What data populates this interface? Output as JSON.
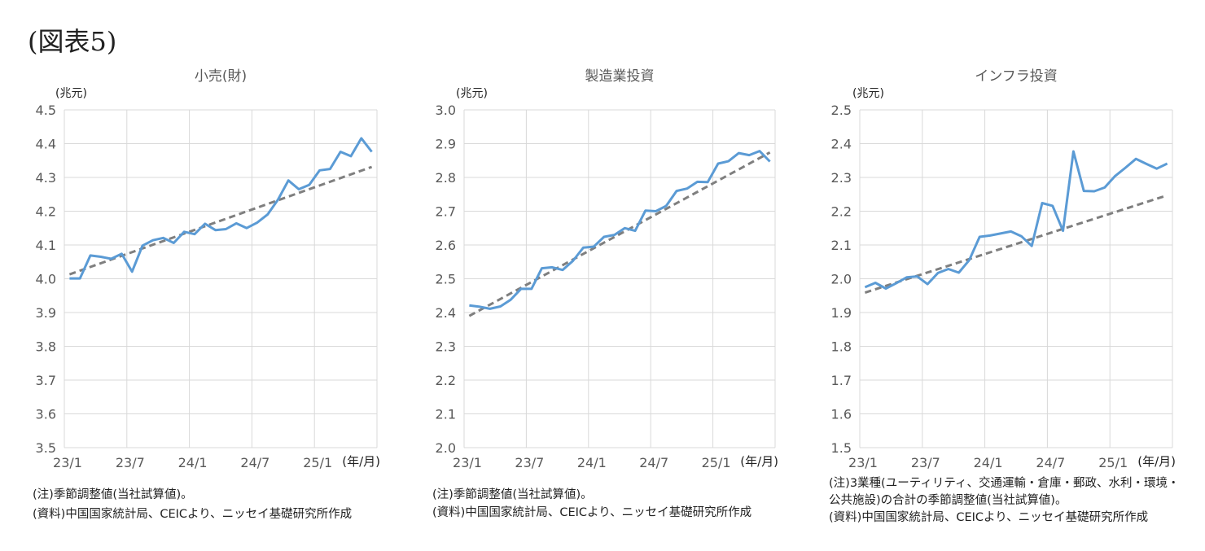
{
  "figure_title": "(図表5)",
  "chart_data": [
    {
      "type": "line",
      "title": "小売(財)",
      "ylabel": "(兆元)",
      "xlabel": "(年/月)",
      "ylim": [
        3.5,
        4.5
      ],
      "yticks": [
        "3.5",
        "3.6",
        "3.7",
        "3.8",
        "3.9",
        "4.0",
        "4.1",
        "4.2",
        "4.3",
        "4.4",
        "4.5"
      ],
      "xticks": [
        "23/1",
        "23/7",
        "24/1",
        "24/7",
        "25/1"
      ],
      "grid": true,
      "x_start": "23/1",
      "x_end": "25/6",
      "series": [
        {
          "color": "#5b9bd5",
          "style": "solid",
          "values": [
            4.001,
            4.001,
            4.069,
            4.065,
            4.059,
            4.074,
            4.021,
            4.098,
            4.114,
            4.121,
            4.106,
            4.139,
            4.132,
            4.163,
            4.144,
            4.147,
            4.164,
            4.15,
            4.166,
            4.19,
            4.234,
            4.291,
            4.265,
            4.278,
            4.321,
            4.325,
            4.376,
            4.363,
            4.416,
            4.376
          ]
        },
        {
          "color": "#7f7f7f",
          "style": "dashed",
          "trend": true,
          "endpoints": [
            4.013,
            4.331
          ]
        }
      ],
      "notes": [
        "(注)季節調整値(当社試算値)。",
        "(資料)中国国家統計局、CEICより、ニッセイ基礎研究所作成"
      ]
    },
    {
      "type": "line",
      "title": "製造業投資",
      "ylabel": "(兆元)",
      "xlabel": "(年/月)",
      "ylim": [
        2.0,
        3.0
      ],
      "yticks": [
        "2.0",
        "2.1",
        "2.2",
        "2.3",
        "2.4",
        "2.5",
        "2.6",
        "2.7",
        "2.8",
        "2.9",
        "3.0"
      ],
      "xticks": [
        "23/1",
        "23/7",
        "24/1",
        "24/7",
        "25/1"
      ],
      "grid": true,
      "x_start": "23/1",
      "x_end": "25/6",
      "series": [
        {
          "color": "#5b9bd5",
          "style": "solid",
          "values": [
            2.421,
            2.417,
            2.411,
            2.418,
            2.438,
            2.47,
            2.47,
            2.531,
            2.534,
            2.526,
            2.553,
            2.592,
            2.595,
            2.624,
            2.63,
            2.65,
            2.642,
            2.702,
            2.7,
            2.716,
            2.76,
            2.767,
            2.787,
            2.786,
            2.841,
            2.848,
            2.872,
            2.866,
            2.878,
            2.847
          ]
        },
        {
          "color": "#7f7f7f",
          "style": "dashed",
          "trend": true,
          "endpoints": [
            2.39,
            2.874
          ]
        }
      ],
      "notes": [
        "(注)季節調整値(当社試算値)。",
        "(資料)中国国家統計局、CEICより、ニッセイ基礎研究所作成"
      ]
    },
    {
      "type": "line",
      "title": "インフラ投資",
      "ylabel": "(兆元)",
      "xlabel": "(年/月)",
      "ylim": [
        1.5,
        2.5
      ],
      "yticks": [
        "1.5",
        "1.6",
        "1.7",
        "1.8",
        "1.9",
        "2.0",
        "2.1",
        "2.2",
        "2.3",
        "2.4",
        "2.5"
      ],
      "xticks": [
        "23/1",
        "23/7",
        "24/1",
        "24/7",
        "25/1"
      ],
      "grid": true,
      "x_start": "23/1",
      "x_end": "25/6",
      "series": [
        {
          "color": "#5b9bd5",
          "style": "solid",
          "values": [
            1.975,
            1.988,
            1.971,
            1.987,
            2.004,
            2.007,
            1.984,
            2.017,
            2.029,
            2.018,
            2.055,
            2.124,
            2.128,
            2.134,
            2.14,
            2.126,
            2.097,
            2.224,
            2.216,
            2.142,
            2.377,
            2.26,
            2.259,
            2.27,
            2.304,
            2.329,
            2.355,
            2.34,
            2.326,
            2.341
          ]
        },
        {
          "color": "#7f7f7f",
          "style": "dashed",
          "trend": true,
          "endpoints": [
            1.959,
            2.247
          ]
        }
      ],
      "notes": [
        "(注)3業種(ユーティリティ、交通運輸・倉庫・郵政、水利・環境・",
        "公共施設)の合計の季節調整値(当社試算値)。",
        "(資料)中国国家統計局、CEICより、ニッセイ基礎研究所作成"
      ]
    }
  ]
}
